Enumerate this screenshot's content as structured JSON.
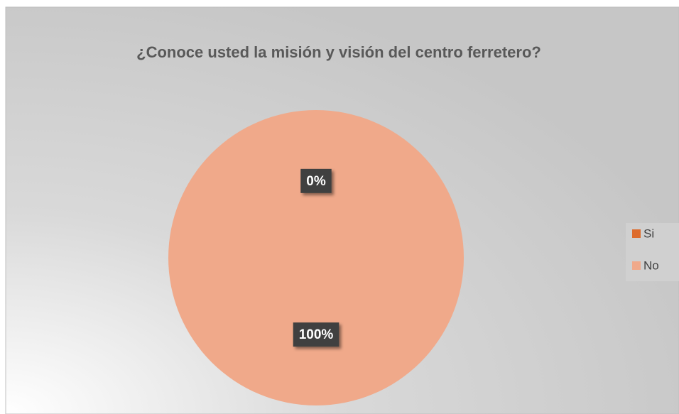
{
  "chart_data": {
    "type": "pie",
    "title": "¿Conoce usted la misión y visión del centro ferretero?",
    "categories": [
      "Si",
      "No"
    ],
    "values": [
      0,
      100
    ],
    "value_labels": [
      "0%",
      "100%"
    ],
    "colors": [
      "#dd6b2c",
      "#f0a98a"
    ],
    "legend": "right"
  }
}
